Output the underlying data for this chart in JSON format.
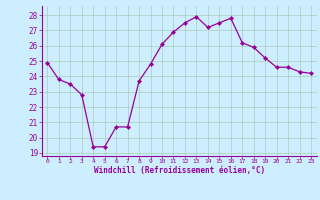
{
  "hours": [
    0,
    1,
    2,
    3,
    4,
    5,
    6,
    7,
    8,
    9,
    10,
    11,
    12,
    13,
    14,
    15,
    16,
    17,
    18,
    19,
    20,
    21,
    22,
    23
  ],
  "windchill": [
    24.9,
    23.8,
    23.5,
    22.8,
    19.4,
    19.4,
    20.7,
    20.7,
    23.7,
    24.8,
    26.1,
    26.9,
    27.5,
    27.9,
    27.2,
    27.5,
    27.8,
    26.2,
    25.9,
    25.2,
    24.6,
    24.6,
    24.3,
    24.2
  ],
  "line_color": "#990099",
  "marker": "D",
  "marker_size": 2.0,
  "bg_color": "#cceeff",
  "grid_color": "#aaccbb",
  "xlabel": "Windchill (Refroidissement éolien,°C)",
  "xlabel_color": "#990099",
  "tick_color": "#990099",
  "ylim": [
    18.8,
    28.6
  ],
  "yticks": [
    19,
    20,
    21,
    22,
    23,
    24,
    25,
    26,
    27,
    28
  ],
  "xlim": [
    -0.5,
    23.5
  ],
  "xticks": [
    0,
    1,
    2,
    3,
    4,
    5,
    6,
    7,
    8,
    9,
    10,
    11,
    12,
    13,
    14,
    15,
    16,
    17,
    18,
    19,
    20,
    21,
    22,
    23
  ]
}
